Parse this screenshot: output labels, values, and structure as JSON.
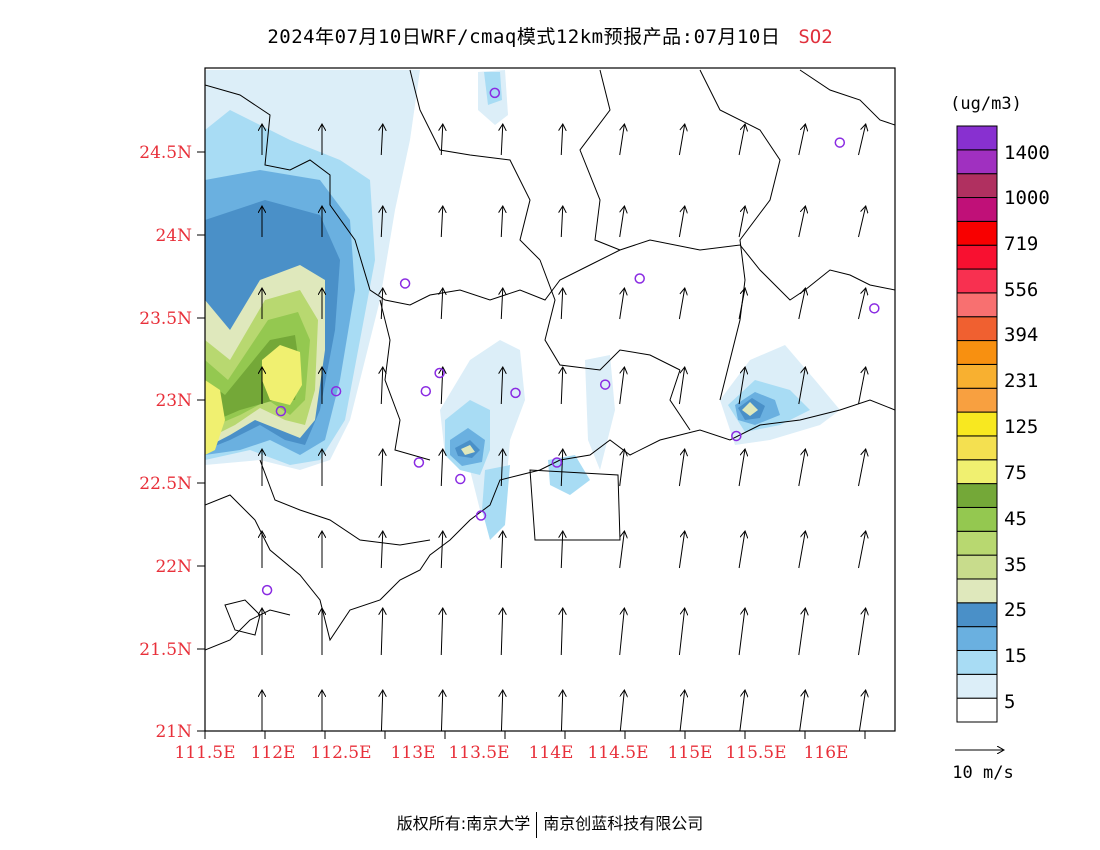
{
  "title": {
    "main": "2024年07月10日WRF/cmaq模式12km预报产品:07月10日",
    "species": "SO2"
  },
  "map": {
    "lat_labels": [
      "24.5N",
      "24N",
      "23.5N",
      "23N",
      "22.5N",
      "22N",
      "21.5N",
      "21N"
    ],
    "lon_labels": [
      "111.5E",
      "112E",
      "112.5E",
      "113E",
      "113.5E",
      "114E",
      "114.5E",
      "115E",
      "115.5E",
      "116E"
    ],
    "lon_range": [
      111.5,
      116.5
    ],
    "lat_range": [
      21.0,
      25.0
    ],
    "wind_direction": "mostly northward (southerly wind)"
  },
  "colorbar": {
    "unit": "(ug/m3)",
    "colors": [
      "#ffffff",
      "#dceef8",
      "#a8dcf4",
      "#6ab0e0",
      "#4a90c8",
      "#dfe8bc",
      "#c8dc8c",
      "#b8d870",
      "#94c850",
      "#74a838",
      "#f0f070",
      "#f4e050",
      "#f8e820",
      "#f8a040",
      "#f8b030",
      "#f89010",
      "#f06030",
      "#f87070",
      "#f83050",
      "#f81030",
      "#f80000",
      "#c01078",
      "#b03060",
      "#a030c0",
      "#8830d0"
    ],
    "labels": [
      "5",
      "15",
      "25",
      "35",
      "45",
      "75",
      "125",
      "231",
      "394",
      "556",
      "719",
      "1000",
      "1400"
    ],
    "wind_ref": "10 m/s"
  },
  "stations": [
    {
      "lon": 113.6,
      "lat": 24.85
    },
    {
      "lon": 116.1,
      "lat": 24.55
    },
    {
      "lon": 112.95,
      "lat": 23.7
    },
    {
      "lon": 114.65,
      "lat": 23.73
    },
    {
      "lon": 116.35,
      "lat": 23.55
    },
    {
      "lon": 112.45,
      "lat": 23.05
    },
    {
      "lon": 113.2,
      "lat": 23.16
    },
    {
      "lon": 113.1,
      "lat": 23.05
    },
    {
      "lon": 113.75,
      "lat": 23.04
    },
    {
      "lon": 114.4,
      "lat": 23.09
    },
    {
      "lon": 112.05,
      "lat": 22.93
    },
    {
      "lon": 115.35,
      "lat": 22.78
    },
    {
      "lon": 113.05,
      "lat": 22.62
    },
    {
      "lon": 113.35,
      "lat": 22.52
    },
    {
      "lon": 114.05,
      "lat": 22.62
    },
    {
      "lon": 113.5,
      "lat": 22.3
    },
    {
      "lon": 111.95,
      "lat": 21.85
    }
  ],
  "footer": {
    "copyright_label": "版权所有:",
    "org1": "南京大学",
    "org2": "南京创蓝科技有限公司"
  }
}
